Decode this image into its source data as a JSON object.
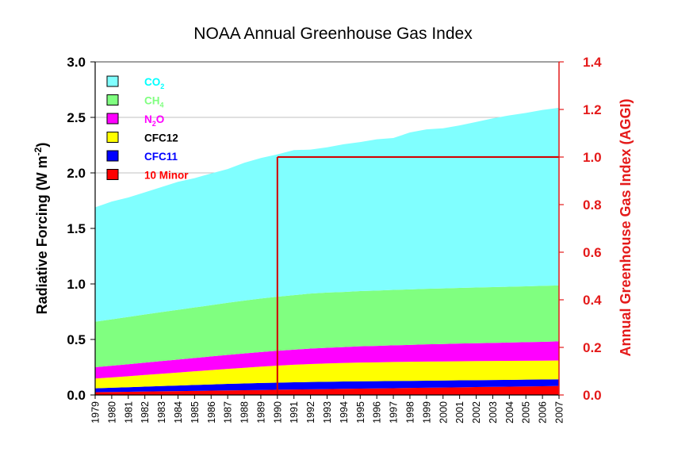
{
  "chart_data": {
    "type": "area",
    "stacked": true,
    "title": "NOAA Annual Greenhouse Gas Index",
    "ylabel": "Radiative Forcing (W m-2)",
    "ylabel_parts": [
      "Radiative Forcing (W m",
      "-2",
      ")"
    ],
    "y2label": "Annual Greenhouse Gas Index (AGGI)",
    "ylim": [
      0,
      3.0
    ],
    "y2lim": [
      0,
      1.4
    ],
    "yticks": [
      "0.0",
      "0.5",
      "1.0",
      "1.5",
      "2.0",
      "2.5",
      "3.0"
    ],
    "y2ticks": [
      "0.0",
      "0.2",
      "0.4",
      "0.6",
      "0.8",
      "1.0",
      "1.2",
      "1.4"
    ],
    "grid": "horizontal",
    "legend_position": "top-left",
    "x": [
      "1979",
      "1980",
      "1981",
      "1982",
      "1983",
      "1984",
      "1985",
      "1986",
      "1987",
      "1988",
      "1989",
      "1990",
      "1991",
      "1992",
      "1993",
      "1994",
      "1995",
      "1996",
      "1997",
      "1998",
      "1999",
      "2000",
      "2001",
      "2002",
      "2003",
      "2004",
      "2005",
      "2006",
      "2007"
    ],
    "reference": {
      "year": "1990",
      "aggi": 1.0
    },
    "series": [
      {
        "name": "10 Minor",
        "label_parts": [
          "10 Minor"
        ],
        "color": "#ff0000",
        "label_color": "#ff0000",
        "values": [
          0.025,
          0.027,
          0.029,
          0.031,
          0.033,
          0.035,
          0.037,
          0.039,
          0.041,
          0.043,
          0.045,
          0.047,
          0.049,
          0.051,
          0.053,
          0.055,
          0.057,
          0.059,
          0.061,
          0.063,
          0.065,
          0.067,
          0.069,
          0.071,
          0.073,
          0.075,
          0.077,
          0.079,
          0.081
        ]
      },
      {
        "name": "CFC11",
        "label_parts": [
          "CFC11"
        ],
        "color": "#0000ff",
        "label_color": "#0000ff",
        "values": [
          0.035,
          0.038,
          0.041,
          0.044,
          0.047,
          0.05,
          0.053,
          0.056,
          0.059,
          0.061,
          0.063,
          0.064,
          0.065,
          0.066,
          0.066,
          0.066,
          0.066,
          0.065,
          0.065,
          0.064,
          0.064,
          0.063,
          0.063,
          0.062,
          0.062,
          0.061,
          0.061,
          0.06,
          0.06
        ]
      },
      {
        "name": "CFC12",
        "label_parts": [
          "CFC12"
        ],
        "color": "#ffff00",
        "label_color": "#000000",
        "values": [
          0.088,
          0.093,
          0.099,
          0.105,
          0.111,
          0.117,
          0.123,
          0.129,
          0.135,
          0.141,
          0.147,
          0.153,
          0.158,
          0.162,
          0.165,
          0.167,
          0.169,
          0.17,
          0.171,
          0.172,
          0.172,
          0.172,
          0.172,
          0.172,
          0.171,
          0.171,
          0.17,
          0.17,
          0.17
        ]
      },
      {
        "name": "N2O",
        "label_parts": [
          "N",
          "2",
          "O"
        ],
        "color": "#ff00ff",
        "label_color": "#ff00ff",
        "values": [
          0.102,
          0.105,
          0.108,
          0.111,
          0.114,
          0.117,
          0.12,
          0.123,
          0.126,
          0.129,
          0.132,
          0.134,
          0.136,
          0.139,
          0.141,
          0.143,
          0.146,
          0.148,
          0.15,
          0.152,
          0.155,
          0.157,
          0.159,
          0.161,
          0.163,
          0.165,
          0.168,
          0.17,
          0.172
        ]
      },
      {
        "name": "CH4",
        "label_parts": [
          "CH",
          "4"
        ],
        "color": "#80ff80",
        "label_color": "#80ff80",
        "values": [
          0.41,
          0.418,
          0.426,
          0.434,
          0.441,
          0.448,
          0.455,
          0.462,
          0.469,
          0.476,
          0.482,
          0.487,
          0.491,
          0.495,
          0.497,
          0.497,
          0.498,
          0.498,
          0.499,
          0.5,
          0.5,
          0.501,
          0.501,
          0.502,
          0.502,
          0.503,
          0.503,
          0.504,
          0.504
        ]
      },
      {
        "name": "CO2",
        "label_parts": [
          "CO",
          "2"
        ],
        "color": "#80ffff",
        "label_color": "#00ffff",
        "values": [
          1.03,
          1.061,
          1.076,
          1.1,
          1.126,
          1.153,
          1.165,
          1.186,
          1.205,
          1.241,
          1.265,
          1.282,
          1.306,
          1.297,
          1.308,
          1.33,
          1.342,
          1.363,
          1.368,
          1.413,
          1.436,
          1.442,
          1.464,
          1.491,
          1.52,
          1.543,
          1.561,
          1.584,
          1.6
        ]
      }
    ]
  }
}
